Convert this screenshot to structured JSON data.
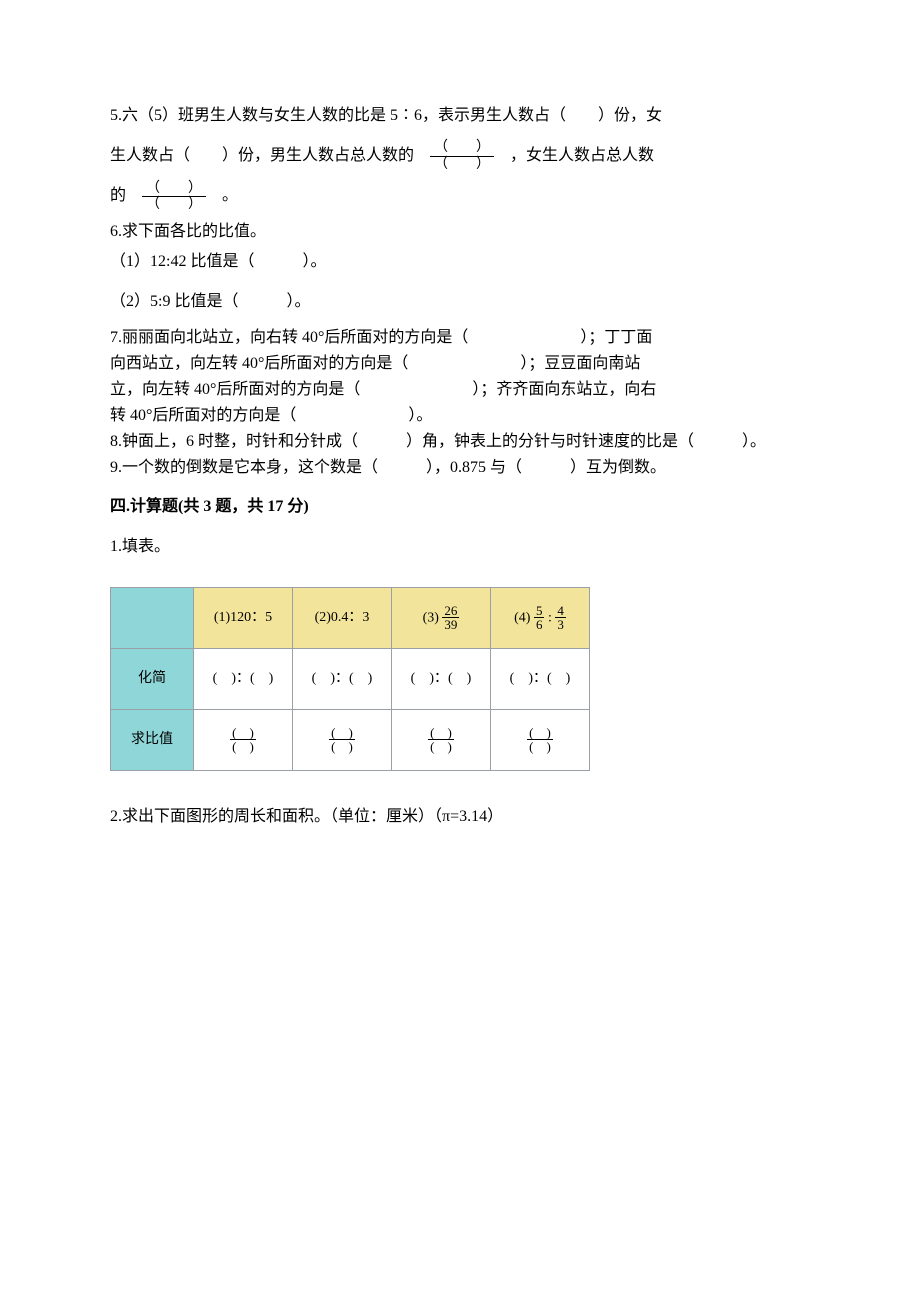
{
  "q5": {
    "text_a": "5.六（5）班男生人数与女生人数的比是 5∶6，表示男生人数占（　　）份，女",
    "text_b": "生人数占（　　）份，男生人数占总人数的",
    "text_c": "，女生人数占总人数",
    "text_d": "的",
    "text_e": "。",
    "frac_num": "（　　）",
    "frac_den": "（　　）"
  },
  "q6": {
    "title": "6.求下面各比的比值。",
    "line1": "（1）12:42 比值是（　　　）。",
    "line2": "（2）5:9 比值是（　　　）。"
  },
  "q7": {
    "l1": "7.丽丽面向北站立，向右转 40°后所面对的方向是（　　　　　　　）；丁丁面",
    "l2": "向西站立，向左转 40°后所面对的方向是（　　　　　　　）；豆豆面向南站",
    "l3": "立，向左转 40°后所面对的方向是（　　　　　　　）；齐齐面向东站立，向右",
    "l4": "转 40°后所面对的方向是（　　　　　　　）。"
  },
  "q8": "8.钟面上，6 时整，时针和分针成（　　　）角，钟表上的分针与时针速度的比是（　　　）。",
  "q9": "9.一个数的倒数是它本身，这个数是（　　　），0.875 与（　　　）互为倒数。",
  "section4_title": "四.计算题(共 3 题，共 17 分)",
  "s4_q1": "1.填表。",
  "table": {
    "headers": [
      "(1)120：5",
      "(2)0.4：3",
      "(3)",
      "(4)"
    ],
    "header3_frac": {
      "n": "26",
      "d": "39"
    },
    "header4_frac_a": {
      "n": "5",
      "d": "6"
    },
    "header4_frac_b": {
      "n": "4",
      "d": "3"
    },
    "row1_label": "化简",
    "row2_label": "求比值",
    "cell_ratio": "(　)：(　)",
    "cell_frac": {
      "n": "(　)",
      "d": "(　)"
    }
  },
  "s4_q2": "2.求出下面图形的周长和面积。（单位：厘米）（π=3.14）"
}
